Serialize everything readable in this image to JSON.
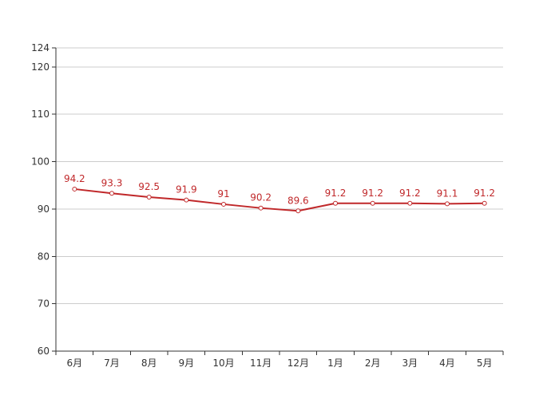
{
  "chart_data": {
    "type": "line",
    "title": "",
    "xlabel": "",
    "ylabel": "",
    "categories": [
      "6月",
      "7月",
      "8月",
      "9月",
      "10月",
      "11月",
      "12月",
      "1月",
      "2月",
      "3月",
      "4月",
      "5月"
    ],
    "series": [
      {
        "values": [
          94.2,
          93.3,
          92.5,
          91.9,
          91,
          90.2,
          89.6,
          91.2,
          91.2,
          91.2,
          91.1,
          91.2
        ],
        "labels": [
          "94.2",
          "93.3",
          "92.5",
          "91.9",
          "91",
          "90.2",
          "89.6",
          "91.2",
          "91.2",
          "91.2",
          "91.1",
          "91.2"
        ]
      }
    ],
    "ylim": [
      60,
      124
    ],
    "yticks": [
      60,
      70,
      80,
      90,
      100,
      110,
      120,
      124
    ],
    "ytick_labels": [
      "60",
      "70",
      "80",
      "90",
      "100",
      "110",
      "120",
      "124"
    ],
    "grid": true,
    "legend": "none",
    "colors": {
      "line": "#c0282a",
      "grid": "#cccccc",
      "axis": "#333333",
      "text": "#333333",
      "marker_fill": "#ffffff"
    }
  }
}
